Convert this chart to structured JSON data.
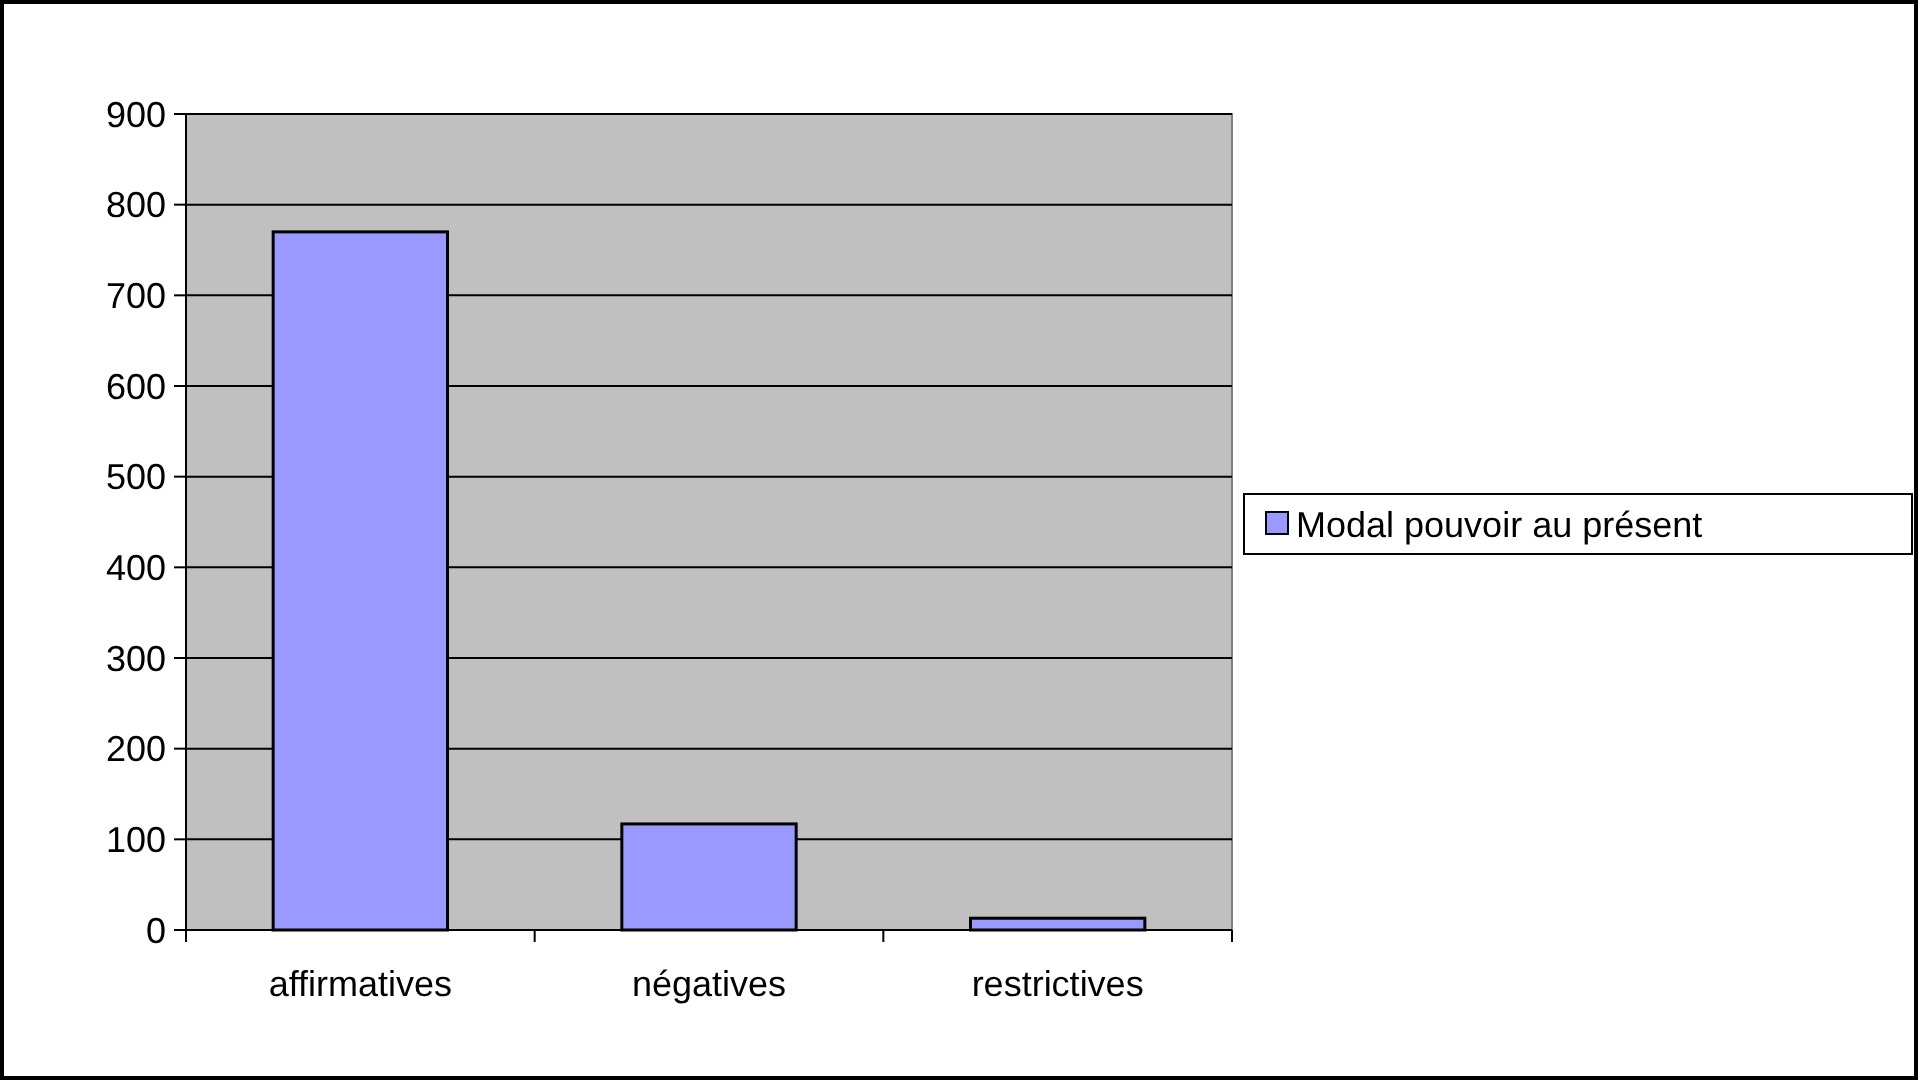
{
  "chart_data": {
    "type": "bar",
    "categories": [
      "affirmatives",
      "négatives",
      "restrictives"
    ],
    "series": [
      {
        "name": "Modal pouvoir au présent",
        "color": "#9999ff",
        "values": [
          770,
          117,
          13
        ]
      }
    ],
    "ylim": [
      0,
      900
    ],
    "yticks": [
      0,
      100,
      200,
      300,
      400,
      500,
      600,
      700,
      800,
      900
    ],
    "grid": "y",
    "legend": "right"
  }
}
